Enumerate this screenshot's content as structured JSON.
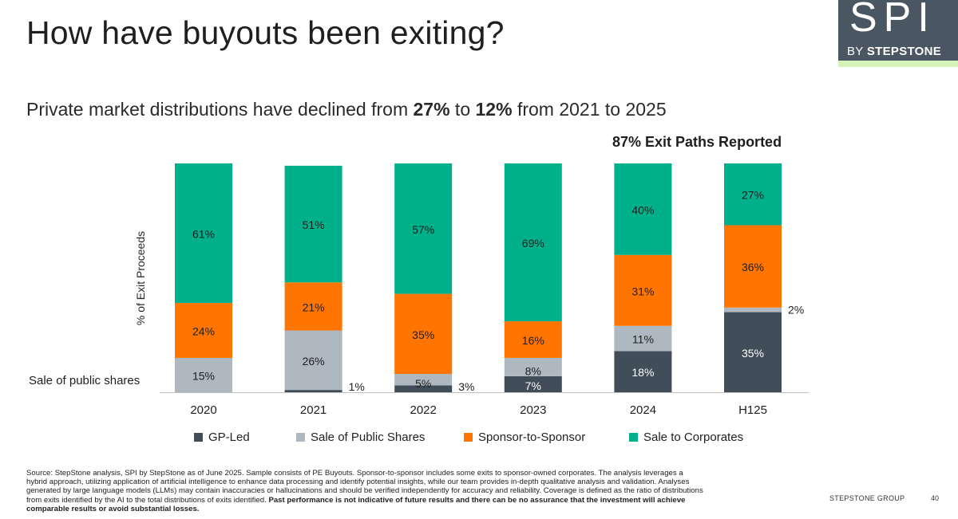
{
  "header": {
    "title": "How have buyouts been exiting?",
    "logo_main": "SPI",
    "logo_by": "BY",
    "logo_brand": "STEPSTONE"
  },
  "subtitle": {
    "part1": "Private market distributions have declined from ",
    "bold1": "27%",
    "part2": " to ",
    "bold2": "12%",
    "part3": " from 2021 to 2025"
  },
  "annotation": "87% Exit Paths Reported",
  "side_label": "Sale of public shares",
  "colors": {
    "gp_led": "#414e59",
    "sale_public": "#adb8c1",
    "sponsor": "#ff7500",
    "corporates": "#00b08a",
    "logo_bg": "#4a5661",
    "logo_accent": "#d4f2b9"
  },
  "chart_data": {
    "type": "bar",
    "stacked": true,
    "categories": [
      "2020",
      "2021",
      "2022",
      "2023",
      "2024",
      "H125"
    ],
    "ylabel": "% of Exit Proceeds",
    "ylim": [
      0,
      100
    ],
    "series": [
      {
        "name": "GP-Led",
        "values": [
          0,
          1,
          3,
          7,
          18,
          35
        ],
        "labels": [
          "",
          "1%",
          "3%",
          "7%",
          "18%",
          "35%"
        ]
      },
      {
        "name": "Sale of Public Shares",
        "values": [
          15,
          26,
          5,
          8,
          11,
          2
        ],
        "labels": [
          "15%",
          "26%",
          "5%",
          "8%",
          "11%",
          "2%"
        ]
      },
      {
        "name": "Sponsor-to-Sponsor",
        "values": [
          24,
          21,
          35,
          16,
          31,
          36
        ],
        "labels": [
          "24%",
          "21%",
          "35%",
          "16%",
          "31%",
          "36%"
        ]
      },
      {
        "name": "Sale to Corporates",
        "values": [
          61,
          51,
          57,
          69,
          40,
          27
        ],
        "labels": [
          "61%",
          "51%",
          "57%",
          "69%",
          "40%",
          "27%"
        ]
      }
    ],
    "legend_position": "bottom"
  },
  "footnote": {
    "text": "Source: StepStone analysis, SPI by StepStone as of June 2025. Sample consists of PE Buyouts. Sponsor-to-sponsor includes some exits to sponsor-owned corporates. The analysis leverages a hybrid approach, utilizing application of artificial intelligence to enhance data processing and identify potential insights, while our team provides in-depth qualitative analysis and validation. Analyses generated by large language models (LLMs) may contain inaccuracies or hallucinations and should be verified independently for accuracy and reliability. Coverage is defined as the ratio of distributions from exits identified by the AI to the total distributions of exits identified. ",
    "bold": "Past performance is not indicative of future results and there can be no assurance that the investment will achieve comparable results or avoid substantial losses."
  },
  "footer": {
    "brand": "STEPSTONE GROUP",
    "page": "40"
  }
}
